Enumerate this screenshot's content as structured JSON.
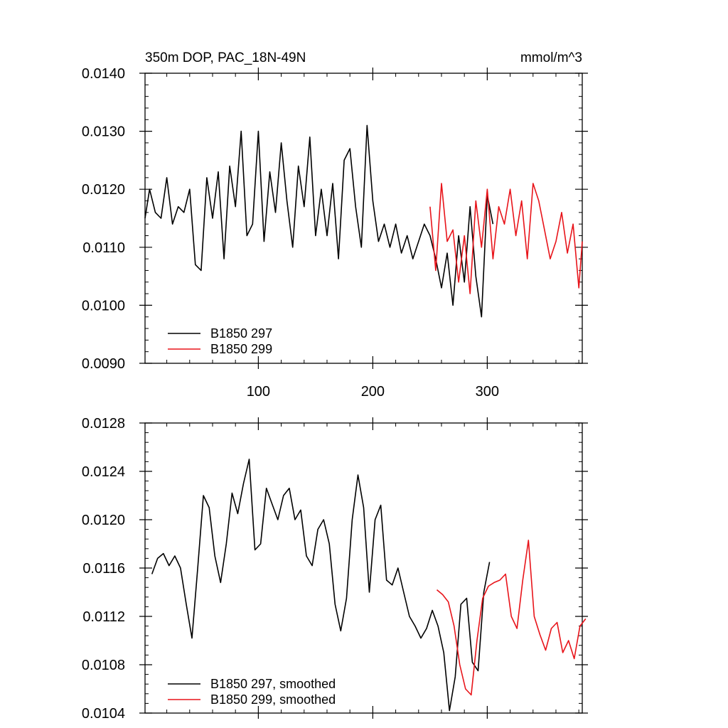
{
  "title": "350m DOP, PAC_18N-49N",
  "units": "mmol/m^3",
  "colors": {
    "run297": "#000000",
    "run299": "#e8141a"
  },
  "chart_data": [
    {
      "type": "line",
      "panel": "top",
      "xlim": [
        1,
        383
      ],
      "ylim": [
        0.009,
        0.014
      ],
      "xticks": [
        100,
        200,
        300
      ],
      "xtick_labels": [
        "100",
        "200",
        "300"
      ],
      "yticks": [
        0.009,
        0.01,
        0.011,
        0.012,
        0.013,
        0.014
      ],
      "ytick_labels": [
        "0.0090",
        "0.0100",
        "0.0110",
        "0.0120",
        "0.0130",
        "0.0140"
      ],
      "legend_position": "bottom-left",
      "series": [
        {
          "name": "B1850 297",
          "color": "#000000",
          "x": [
            1,
            5,
            10,
            15,
            20,
            25,
            30,
            35,
            40,
            45,
            50,
            55,
            60,
            65,
            70,
            75,
            80,
            85,
            90,
            95,
            100,
            105,
            110,
            115,
            120,
            125,
            130,
            135,
            140,
            145,
            150,
            155,
            160,
            165,
            170,
            175,
            180,
            185,
            190,
            195,
            200,
            205,
            210,
            215,
            220,
            225,
            230,
            235,
            240,
            245,
            250,
            255,
            260,
            265,
            270,
            275,
            280,
            285,
            290,
            295,
            300,
            305
          ],
          "y": [
            0.0115,
            0.012,
            0.0116,
            0.0115,
            0.0122,
            0.0114,
            0.0117,
            0.0116,
            0.012,
            0.0107,
            0.0106,
            0.0122,
            0.0115,
            0.0123,
            0.0108,
            0.0124,
            0.0117,
            0.013,
            0.0112,
            0.0114,
            0.013,
            0.0111,
            0.0123,
            0.0116,
            0.0128,
            0.0118,
            0.011,
            0.0124,
            0.0117,
            0.0129,
            0.0112,
            0.012,
            0.0112,
            0.0121,
            0.0108,
            0.0125,
            0.0127,
            0.0117,
            0.011,
            0.0131,
            0.0118,
            0.0111,
            0.0114,
            0.011,
            0.0114,
            0.0109,
            0.0112,
            0.0108,
            0.0111,
            0.0114,
            0.0112,
            0.0108,
            0.0103,
            0.0109,
            0.01,
            0.0112,
            0.0104,
            0.0117,
            0.0105,
            0.0098,
            0.0119,
            0.0114
          ]
        },
        {
          "name": "B1850 299",
          "color": "#e8141a",
          "x": [
            250,
            255,
            260,
            265,
            270,
            275,
            280,
            285,
            290,
            295,
            300,
            305,
            310,
            315,
            320,
            325,
            330,
            335,
            340,
            345,
            350,
            355,
            360,
            365,
            370,
            375,
            380,
            383
          ],
          "y": [
            0.0117,
            0.0106,
            0.0121,
            0.0111,
            0.0113,
            0.0104,
            0.0112,
            0.0102,
            0.0118,
            0.011,
            0.012,
            0.0108,
            0.0117,
            0.0114,
            0.012,
            0.0112,
            0.0118,
            0.0108,
            0.0121,
            0.0118,
            0.0113,
            0.0108,
            0.0111,
            0.0116,
            0.0109,
            0.0114,
            0.0103,
            0.0111
          ]
        }
      ]
    },
    {
      "type": "line",
      "panel": "bottom",
      "xlim": [
        1,
        383
      ],
      "ylim": [
        0.0104,
        0.0128
      ],
      "xticks": [
        100,
        200,
        300
      ],
      "xtick_labels": [],
      "yticks": [
        0.0104,
        0.0108,
        0.0112,
        0.0116,
        0.012,
        0.0124,
        0.0128
      ],
      "ytick_labels": [
        "0.0104",
        "0.0108",
        "0.0112",
        "0.0116",
        "0.0120",
        "0.0124",
        "0.0128"
      ],
      "legend_position": "bottom-left",
      "series": [
        {
          "name": "B1850 297, smoothed",
          "color": "#000000",
          "x": [
            7,
            12,
            17,
            22,
            27,
            32,
            37,
            42,
            47,
            52,
            57,
            62,
            67,
            72,
            77,
            82,
            87,
            92,
            97,
            102,
            107,
            112,
            117,
            122,
            127,
            132,
            137,
            142,
            147,
            152,
            157,
            162,
            167,
            172,
            177,
            182,
            187,
            192,
            197,
            202,
            207,
            212,
            217,
            222,
            227,
            232,
            237,
            242,
            247,
            252,
            257,
            262,
            267,
            272,
            277,
            282,
            287,
            292,
            297,
            302
          ],
          "y": [
            0.01155,
            0.01168,
            0.01172,
            0.01162,
            0.0117,
            0.0116,
            0.0113,
            0.01102,
            0.0116,
            0.0122,
            0.0121,
            0.0117,
            0.01148,
            0.0118,
            0.01222,
            0.01205,
            0.0123,
            0.0125,
            0.01175,
            0.0118,
            0.01226,
            0.01213,
            0.012,
            0.0122,
            0.01226,
            0.012,
            0.01208,
            0.0117,
            0.01162,
            0.01192,
            0.012,
            0.0118,
            0.0113,
            0.01108,
            0.01135,
            0.012,
            0.01237,
            0.0121,
            0.0114,
            0.012,
            0.01212,
            0.0115,
            0.01146,
            0.0116,
            0.0114,
            0.0112,
            0.01112,
            0.01102,
            0.0111,
            0.01125,
            0.01112,
            0.0109,
            0.01042,
            0.0107,
            0.0113,
            0.01135,
            0.01082,
            0.01075,
            0.0114,
            0.01165
          ]
        },
        {
          "name": "B1850 299, smoothed",
          "color": "#e8141a",
          "x": [
            256,
            261,
            266,
            271,
            276,
            281,
            286,
            291,
            296,
            301,
            306,
            311,
            316,
            321,
            326,
            331,
            336,
            341,
            346,
            351,
            356,
            361,
            366,
            371,
            376,
            381,
            386
          ],
          "y": [
            0.01142,
            0.01138,
            0.01132,
            0.01112,
            0.0108,
            0.0106,
            0.01055,
            0.011,
            0.01135,
            0.01145,
            0.01148,
            0.0115,
            0.01155,
            0.0112,
            0.0111,
            0.0115,
            0.01183,
            0.0112,
            0.01105,
            0.01092,
            0.0111,
            0.01115,
            0.0109,
            0.011,
            0.01085,
            0.01112,
            0.01118
          ]
        }
      ]
    }
  ]
}
